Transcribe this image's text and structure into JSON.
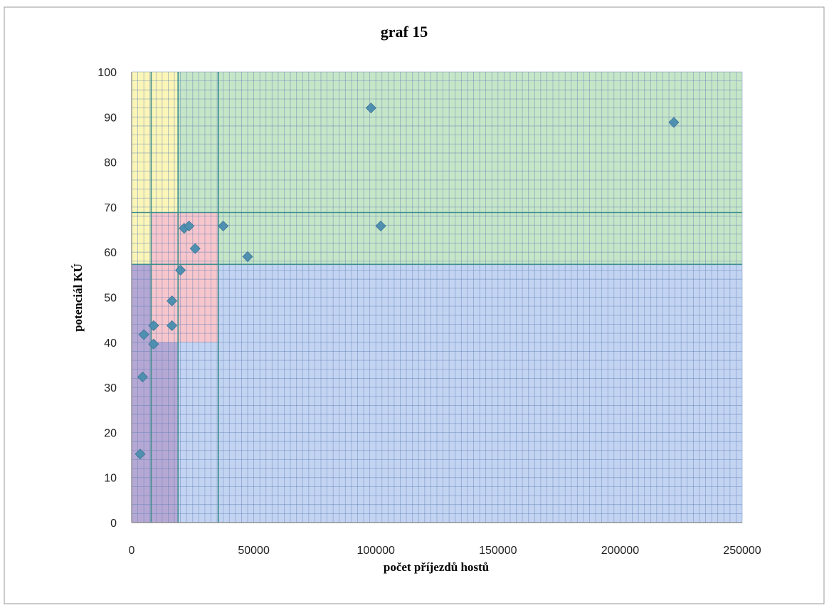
{
  "chart_data": {
    "type": "scatter",
    "title": "graf 15",
    "xlabel": "počet příjezdů hostů",
    "ylabel": "potenciál KÚ",
    "xlim": [
      0,
      250000
    ],
    "ylim": [
      0,
      100
    ],
    "x_ticks": [
      0,
      50000,
      100000,
      150000,
      200000,
      250000
    ],
    "y_ticks": [
      0,
      10,
      20,
      30,
      40,
      50,
      60,
      70,
      80,
      90,
      100
    ],
    "x_tick_labels": [
      "0",
      "50000",
      "100000",
      "150000",
      "200000",
      "250000"
    ],
    "y_tick_labels": [
      "0",
      "10",
      "20",
      "30",
      "40",
      "50",
      "60",
      "70",
      "80",
      "90",
      "100"
    ],
    "grid": true,
    "legend": "none",
    "marker": "diamond",
    "marker_color": "#4f8fb0",
    "points": [
      {
        "x": 98000,
        "y": 92
      },
      {
        "x": 222000,
        "y": 88.8
      },
      {
        "x": 37500,
        "y": 65.8
      },
      {
        "x": 102000,
        "y": 65.8
      },
      {
        "x": 47500,
        "y": 59
      },
      {
        "x": 21500,
        "y": 65.3
      },
      {
        "x": 23500,
        "y": 65.8
      },
      {
        "x": 26000,
        "y": 60.8
      },
      {
        "x": 20000,
        "y": 56
      },
      {
        "x": 16500,
        "y": 49.2
      },
      {
        "x": 16500,
        "y": 43.7
      },
      {
        "x": 9000,
        "y": 43.7
      },
      {
        "x": 5000,
        "y": 41.7
      },
      {
        "x": 9000,
        "y": 39.6
      },
      {
        "x": 4500,
        "y": 32.3
      },
      {
        "x": 3500,
        "y": 15.2
      }
    ],
    "regions": [
      {
        "name": "green",
        "color": "#c6e6c8",
        "x": [
          19000,
          250000
        ],
        "y": [
          57.3,
          100
        ]
      },
      {
        "name": "blue",
        "color": "#c3d4f2",
        "x": [
          19000,
          250000
        ],
        "y": [
          0,
          57.3
        ]
      },
      {
        "name": "yellow",
        "color": "#fbf6b8",
        "x": [
          0,
          19000
        ],
        "y": [
          57.3,
          100
        ]
      },
      {
        "name": "purple",
        "color": "#b6a8d4",
        "x": [
          0,
          19000
        ],
        "y": [
          0,
          57.3
        ]
      },
      {
        "name": "pink",
        "color": "#f7c6cc",
        "x": [
          8000,
          35500
        ],
        "y": [
          40,
          68.8
        ]
      }
    ],
    "reference_lines": {
      "vertical": [
        8000,
        19000,
        35500
      ],
      "horizontal": [
        57.3,
        68.8
      ]
    }
  }
}
